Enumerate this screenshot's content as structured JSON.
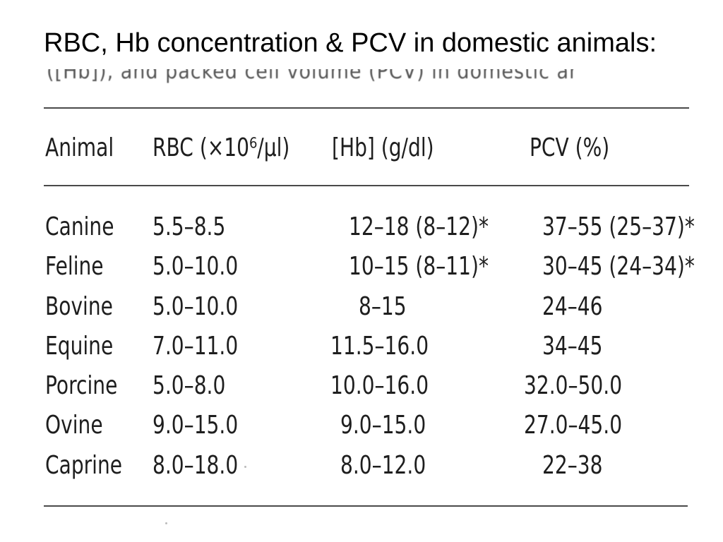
{
  "slide": {
    "title": "RBC, Hb concentration & PCV in domestic animals:",
    "scan_caption_fragment": "([Hb]), and packed cell volume (PCV) in domestic animals"
  },
  "table": {
    "headers": {
      "animal": "Animal",
      "rbc": "RBC (×10⁶/µl)",
      "hb": "[Hb] (g/dl)",
      "pcv": "PCV (%)"
    },
    "rows": [
      {
        "animal": "Canine",
        "rbc": "5.5–8.5",
        "hb": "12–18 (8–12)*",
        "pcv": "37–55 (25–37)*"
      },
      {
        "animal": "Feline",
        "rbc": "5.0–10.0",
        "hb": "10–15 (8–11)*",
        "pcv": "30–45 (24–34)*"
      },
      {
        "animal": "Bovine",
        "rbc": "5.0–10.0",
        "hb": "8–15",
        "pcv": "24–46"
      },
      {
        "animal": "Equine",
        "rbc": "7.0–11.0",
        "hb": "11.5–16.0",
        "pcv": "34–45"
      },
      {
        "animal": "Porcine",
        "rbc": "5.0–8.0",
        "hb": "10.0–16.0",
        "pcv": "32.0–50.0"
      },
      {
        "animal": "Ovine",
        "rbc": "9.0–15.0",
        "hb": "9.0–15.0",
        "pcv": "27.0–45.0"
      },
      {
        "animal": "Caprine",
        "rbc": "8.0–18.0",
        "hb": "8.0–12.0",
        "pcv": "22–38"
      }
    ]
  }
}
